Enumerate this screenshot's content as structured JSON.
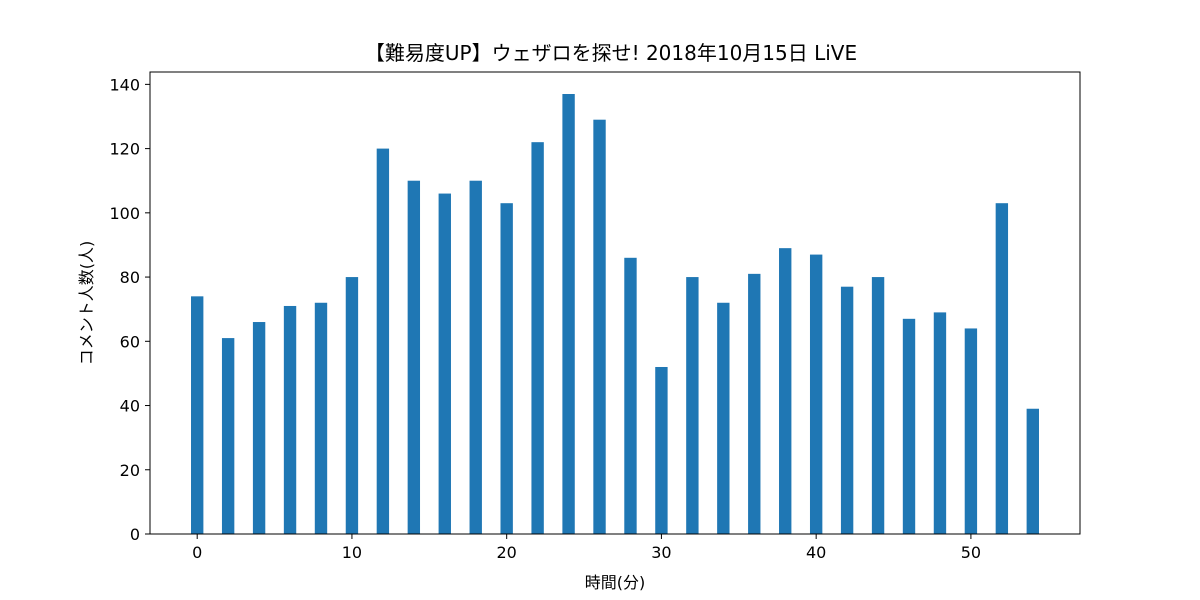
{
  "chart_data": {
    "type": "bar",
    "title": "【難易度UP】ウェザロを探せ! 2018年10月15日 LiVE",
    "xlabel": "時間(分)",
    "ylabel": "コメント人数(人)",
    "x": [
      0,
      2,
      4,
      6,
      8,
      10,
      12,
      14,
      16,
      18,
      20,
      22,
      24,
      26,
      28,
      30,
      32,
      34,
      36,
      38,
      40,
      42,
      44,
      46,
      48,
      50,
      52,
      54
    ],
    "values": [
      74,
      61,
      66,
      71,
      72,
      80,
      120,
      110,
      106,
      110,
      103,
      122,
      137,
      129,
      86,
      52,
      80,
      72,
      81,
      89,
      87,
      77,
      80,
      67,
      69,
      64,
      103,
      39
    ],
    "xlim": [
      -3.05,
      57.05
    ],
    "ylim": [
      0,
      143.85
    ],
    "xticks": [
      0,
      10,
      20,
      30,
      40,
      50
    ],
    "xtick_labels": [
      "0",
      "10",
      "20",
      "30",
      "40",
      "50"
    ],
    "yticks": [
      0,
      20,
      40,
      60,
      80,
      100,
      120,
      140
    ],
    "ytick_labels": [
      "0",
      "20",
      "40",
      "60",
      "80",
      "100",
      "120",
      "140"
    ],
    "bar_width": 0.8,
    "grid": false,
    "color": "#1f77b4"
  }
}
